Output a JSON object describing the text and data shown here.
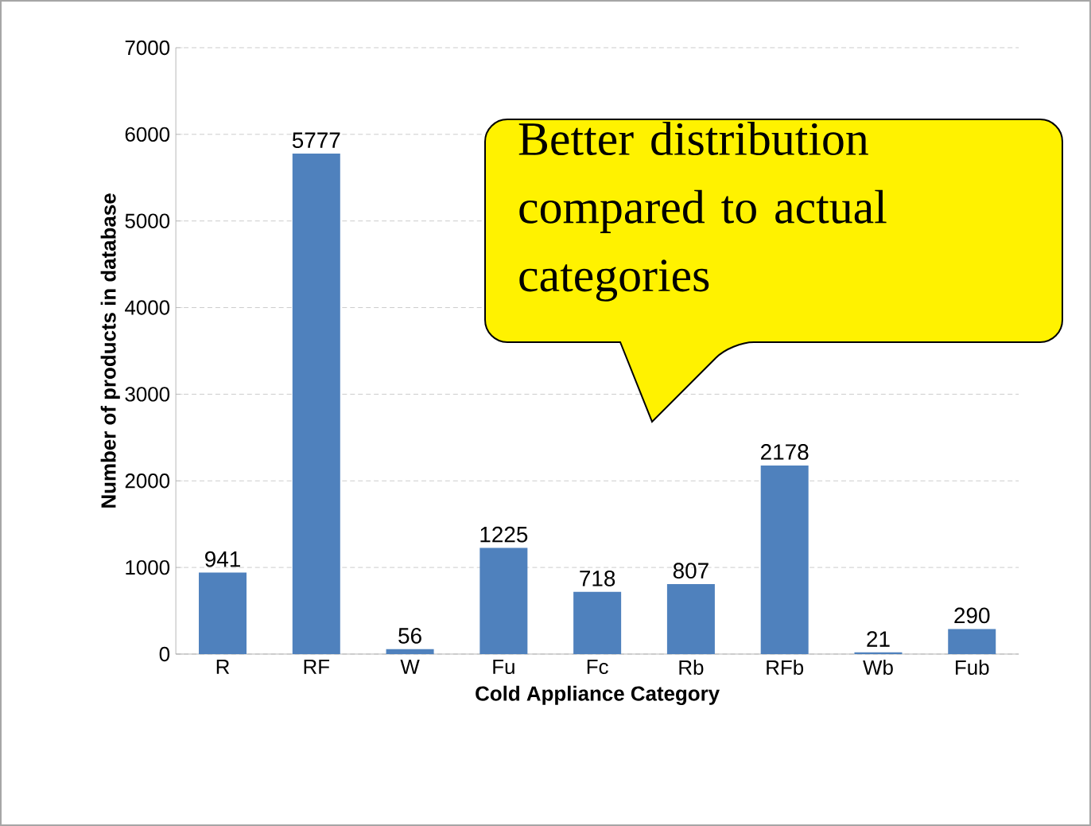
{
  "chart_data": {
    "type": "bar",
    "xlabel": "Cold Appliance Category",
    "ylabel": "Number of products in database",
    "categories": [
      "R",
      "RF",
      "W",
      "Fu",
      "Fc",
      "Rb",
      "RFb",
      "Wb",
      "Fub"
    ],
    "values": [
      941,
      5777,
      56,
      1225,
      718,
      807,
      2178,
      21,
      290
    ],
    "color": "#4f81bd",
    "data_labels": true,
    "ylim": [
      0,
      7000
    ],
    "yticks": [
      0,
      1000,
      2000,
      3000,
      4000,
      5000,
      6000,
      7000
    ],
    "grid": "y",
    "annotations": [
      "Better distribution compared to actual categories"
    ]
  }
}
